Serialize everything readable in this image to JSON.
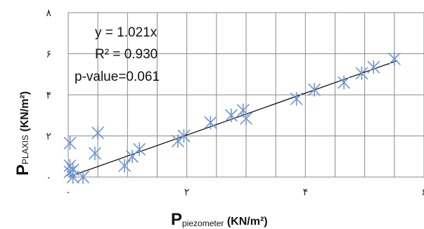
{
  "chart_data": {
    "type": "scatter",
    "title": "",
    "xlabel": {
      "main": "P",
      "sub": "piezometer",
      "unit": " (KN/m²)"
    },
    "ylabel": {
      "main": "P",
      "sub": "PLAXIS",
      "unit": " (KN/m²)"
    },
    "xlim": [
      0,
      6
    ],
    "ylim": [
      0,
      8
    ],
    "x_ticks": [
      0,
      2,
      4,
      6
    ],
    "x_tick_labels": [
      "۰",
      "۲",
      "۴",
      "۶"
    ],
    "y_ticks": [
      0,
      2,
      4,
      6,
      8
    ],
    "y_tick_labels": [
      "۰",
      "۲",
      "۴",
      "۶",
      "۸"
    ],
    "grid": {
      "vertical_step": 0.5,
      "horizontal_step": 2
    },
    "annotations": [
      "y = 1.021x",
      "R² = 0.930",
      "p-value=0.061"
    ],
    "trendline": {
      "slope": 1.021,
      "x_range": [
        0.03,
        5.55
      ]
    },
    "marker_color": "#6f96cf",
    "series": [
      {
        "points": [
          [
            0.03,
            1.65
          ],
          [
            0.03,
            0.55
          ],
          [
            0.03,
            0.25
          ],
          [
            0.08,
            0.35
          ],
          [
            0.08,
            0.0
          ],
          [
            0.25,
            0.0
          ],
          [
            0.45,
            1.15
          ],
          [
            0.5,
            2.15
          ],
          [
            0.95,
            0.55
          ],
          [
            1.08,
            1.0
          ],
          [
            1.2,
            1.35
          ],
          [
            1.85,
            1.75
          ],
          [
            1.95,
            2.0
          ],
          [
            2.4,
            2.65
          ],
          [
            2.75,
            3.0
          ],
          [
            2.95,
            3.25
          ],
          [
            3.0,
            2.85
          ],
          [
            3.85,
            3.8
          ],
          [
            4.15,
            4.25
          ],
          [
            4.65,
            4.6
          ],
          [
            4.95,
            5.05
          ],
          [
            5.15,
            5.35
          ],
          [
            5.5,
            5.75
          ]
        ]
      }
    ]
  }
}
